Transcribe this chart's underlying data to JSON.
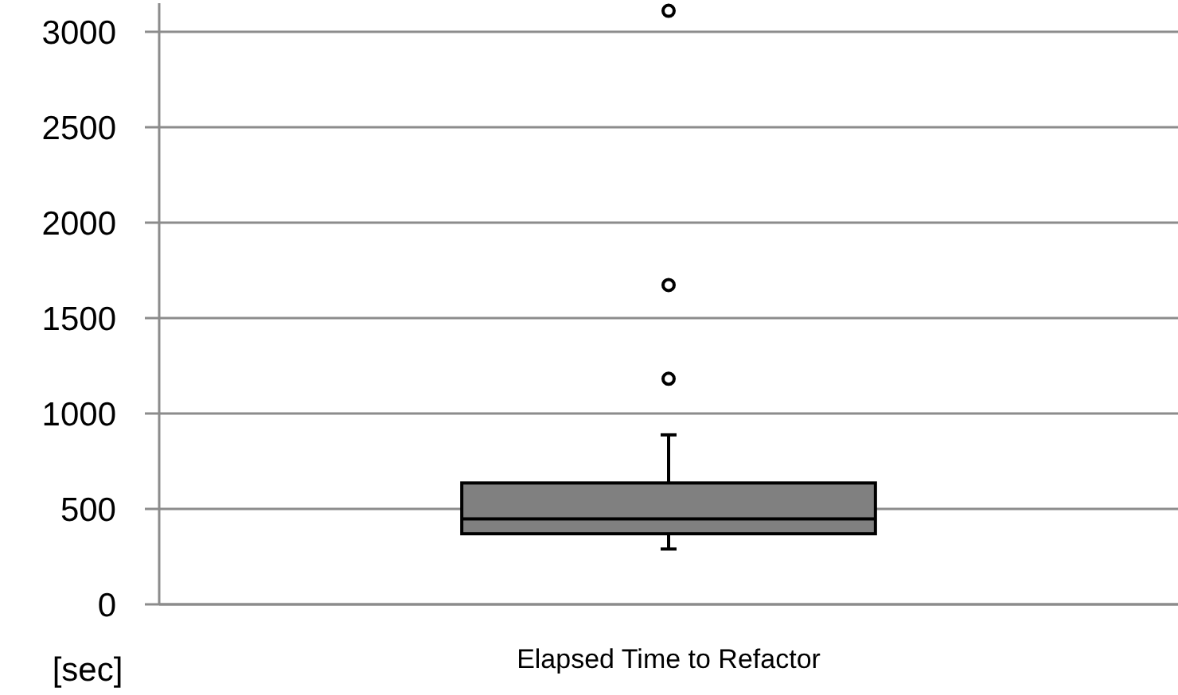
{
  "chart_data": {
    "type": "box",
    "ylabel": "[sec]",
    "categories": [
      "Elapsed Time to Refactor"
    ],
    "boxes": [
      {
        "low": 290,
        "q1": 370,
        "median": 448,
        "q3": 636,
        "high": 888,
        "outliers": [
          1182,
          1673,
          3110
        ]
      }
    ],
    "color": "#808080",
    "ylim": [
      0,
      3150
    ],
    "yticks": [
      0,
      500,
      1000,
      1500,
      2000,
      2500,
      3000
    ],
    "grid": "y",
    "marker": "circle"
  }
}
